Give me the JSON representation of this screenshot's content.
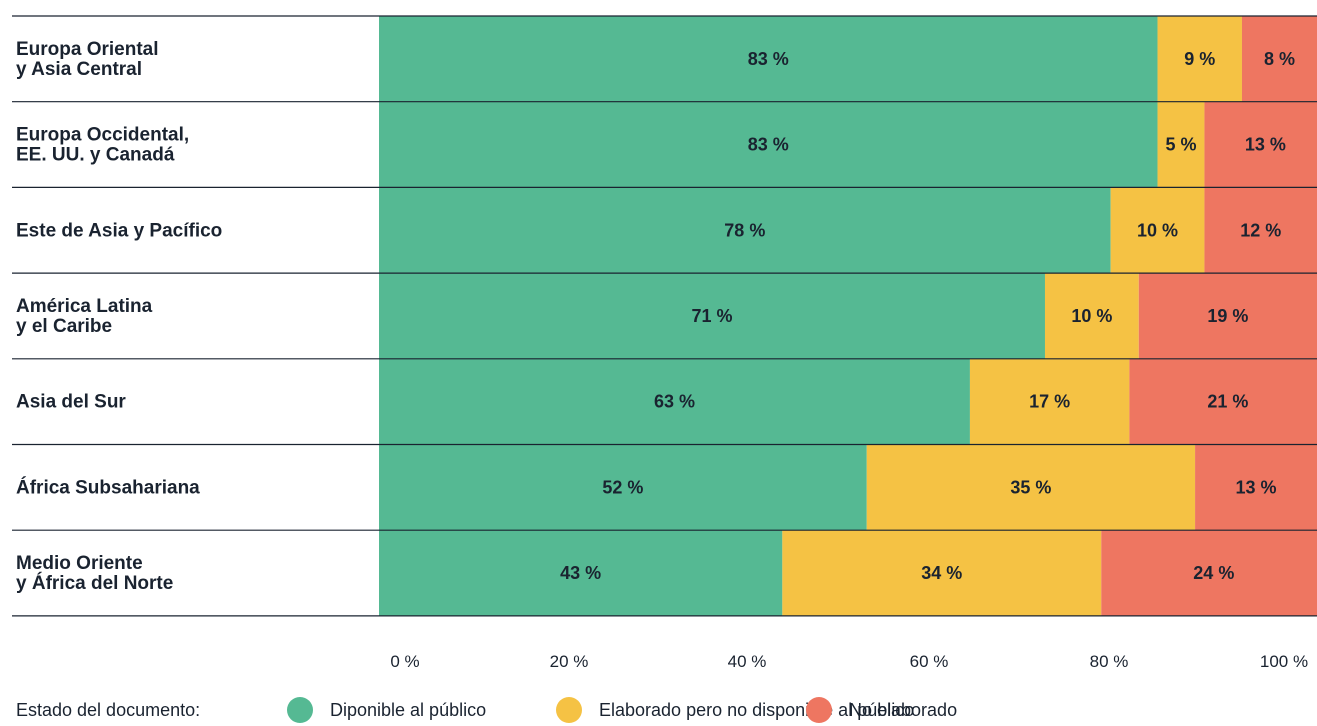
{
  "chart_data": {
    "type": "bar",
    "orientation": "horizontal",
    "stacked": true,
    "categories": [
      [
        "Europa Oriental",
        "y Asia Central"
      ],
      [
        "Europa Occidental,",
        "EE. UU. y Canadá"
      ],
      [
        "Este de Asia y Pacífico"
      ],
      [
        "América Latina",
        "y el Caribe"
      ],
      [
        "Asia del Sur"
      ],
      [
        "África Subsahariana"
      ],
      [
        "Medio Oriente",
        "y África del Norte"
      ]
    ],
    "series": [
      {
        "name": "Diponible al público",
        "color": "#55b993",
        "values": [
          83,
          83,
          78,
          71,
          63,
          52,
          43
        ]
      },
      {
        "name": "Elaborado pero no disponible al público",
        "color": "#f5c244",
        "values": [
          9,
          5,
          10,
          10,
          17,
          35,
          34
        ]
      },
      {
        "name": "No elaborado",
        "color": "#ee7661",
        "values": [
          8,
          13,
          12,
          19,
          21,
          13,
          24
        ]
      }
    ],
    "value_suffix": " %",
    "xlim": [
      0,
      100
    ],
    "x_ticks": [
      "0 %",
      "20 %",
      "40 %",
      "60 %",
      "80 %",
      "100 %"
    ],
    "legend_title": "Estado del documento:",
    "legend_position": "bottom",
    "grid": false
  }
}
